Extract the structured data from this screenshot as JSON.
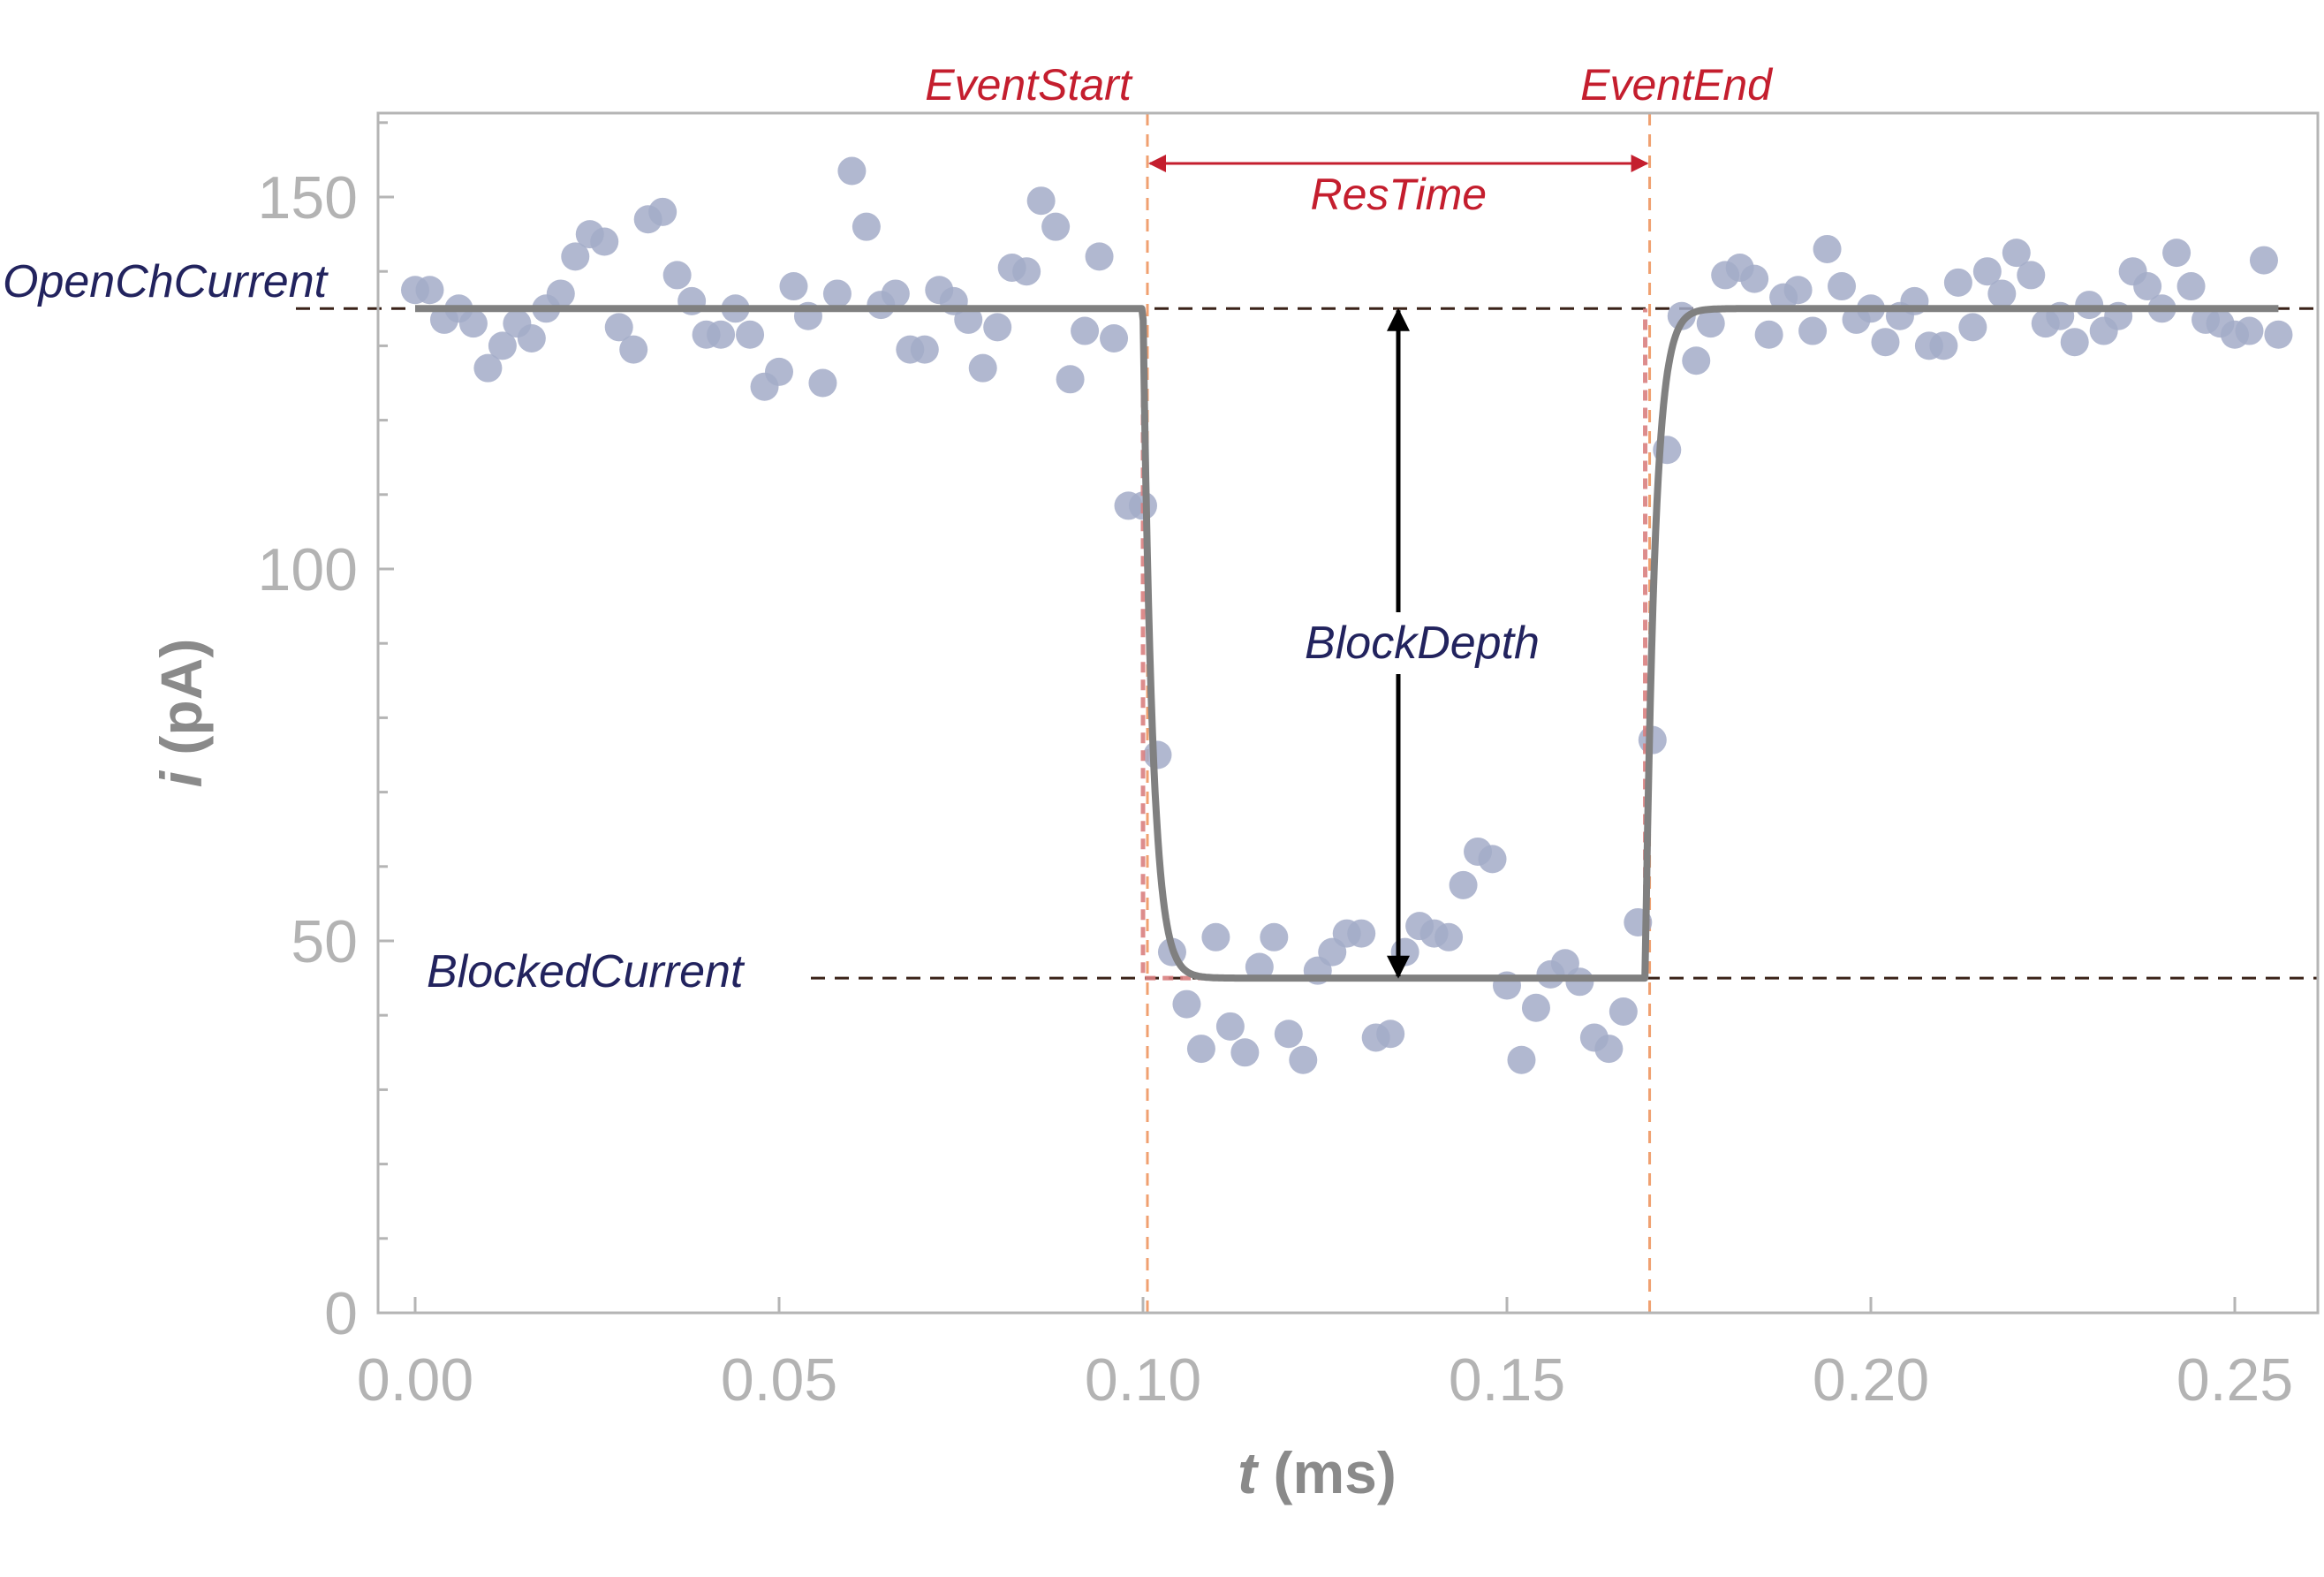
{
  "chart_data": {
    "type": "scatter",
    "xlabel_var": "t",
    "xlabel_unit": " (ms)",
    "ylabel_var": "i",
    "ylabel_unit": " (pA)",
    "xlim": [
      -0.005,
      0.26
    ],
    "ylim": [
      0,
      162
    ],
    "xticks": [
      0.0,
      0.05,
      0.1,
      0.15,
      0.2,
      0.25
    ],
    "xtick_labels": [
      "0.00",
      "0.05",
      "0.10",
      "0.15",
      "0.20",
      "0.25"
    ],
    "yticks": [
      0,
      50,
      100,
      150
    ],
    "ytick_labels": [
      "0",
      "50",
      "100",
      "150"
    ],
    "y_minor_ticks": [
      10,
      20,
      30,
      40,
      60,
      70,
      80,
      90,
      110,
      120,
      130,
      140,
      160
    ],
    "grid": false,
    "colors": {
      "points": "#a3acc8",
      "fit": "#808080",
      "red_annotation": "#c41e2e",
      "navy_annotation": "#22235e",
      "event_lines": "#f0a070",
      "level_lines": "#3a2218"
    },
    "levels": {
      "open_current": 135,
      "blocked_current": 45
    },
    "events": {
      "start": 0.1,
      "end": 0.169
    },
    "fit_time_constant_ms": 0.0013,
    "annotations": {
      "event_start": "EventStart",
      "event_end": "EventEnd",
      "res_time": "ResTime",
      "open_ch_current": "OpenChCurrent",
      "blocked_current": "BlockedCurrent",
      "block_depth": "BlockDepth"
    },
    "series": [
      {
        "kind": "measured current",
        "points": [
          [
            0.0,
            137.5
          ],
          [
            0.002,
            137.5
          ],
          [
            0.004,
            133.5
          ],
          [
            0.006,
            135
          ],
          [
            0.008,
            133
          ],
          [
            0.01,
            127
          ],
          [
            0.012,
            130
          ],
          [
            0.014,
            133
          ],
          [
            0.016,
            131
          ],
          [
            0.018,
            135
          ],
          [
            0.02,
            137
          ],
          [
            0.022,
            142
          ],
          [
            0.024,
            145
          ],
          [
            0.026,
            144
          ],
          [
            0.028,
            132.5
          ],
          [
            0.03,
            129.5
          ],
          [
            0.032,
            147
          ],
          [
            0.034,
            148
          ],
          [
            0.036,
            139.5
          ],
          [
            0.038,
            136
          ],
          [
            0.04,
            131.5
          ],
          [
            0.042,
            131.5
          ],
          [
            0.044,
            135
          ],
          [
            0.046,
            131.5
          ],
          [
            0.048,
            124.5
          ],
          [
            0.05,
            126.5
          ],
          [
            0.052,
            138
          ],
          [
            0.054,
            134
          ],
          [
            0.056,
            125
          ],
          [
            0.058,
            137
          ],
          [
            0.06,
            153.5
          ],
          [
            0.062,
            146
          ],
          [
            0.064,
            135.5
          ],
          [
            0.066,
            137
          ],
          [
            0.068,
            129.5
          ],
          [
            0.07,
            129.5
          ],
          [
            0.072,
            137.5
          ],
          [
            0.074,
            136
          ],
          [
            0.076,
            133.5
          ],
          [
            0.078,
            127
          ],
          [
            0.08,
            132.5
          ],
          [
            0.082,
            140.5
          ],
          [
            0.084,
            140
          ],
          [
            0.086,
            149.5
          ],
          [
            0.088,
            146
          ],
          [
            0.09,
            125.5
          ],
          [
            0.092,
            132
          ],
          [
            0.094,
            142
          ],
          [
            0.096,
            131
          ],
          [
            0.098,
            108.5
          ],
          [
            0.1,
            108.5
          ],
          [
            0.102,
            75
          ],
          [
            0.104,
            48.5
          ],
          [
            0.106,
            41.5
          ],
          [
            0.108,
            35.5
          ],
          [
            0.11,
            50.5
          ],
          [
            0.112,
            38.5
          ],
          [
            0.114,
            35
          ],
          [
            0.116,
            46.5
          ],
          [
            0.118,
            50.5
          ],
          [
            0.12,
            37.5
          ],
          [
            0.122,
            34
          ],
          [
            0.124,
            46
          ],
          [
            0.126,
            48.5
          ],
          [
            0.128,
            51
          ],
          [
            0.13,
            51
          ],
          [
            0.132,
            37
          ],
          [
            0.134,
            37.5
          ],
          [
            0.136,
            48.5
          ],
          [
            0.138,
            52
          ],
          [
            0.14,
            51
          ],
          [
            0.142,
            50.5
          ],
          [
            0.144,
            57.5
          ],
          [
            0.146,
            62
          ],
          [
            0.148,
            61
          ],
          [
            0.15,
            44
          ],
          [
            0.152,
            34
          ],
          [
            0.154,
            41
          ],
          [
            0.156,
            45.5
          ],
          [
            0.158,
            47
          ],
          [
            0.16,
            44.5
          ],
          [
            0.162,
            37
          ],
          [
            0.164,
            35.5
          ],
          [
            0.166,
            40.5
          ],
          [
            0.168,
            52.5
          ],
          [
            0.17,
            77
          ],
          [
            0.172,
            116
          ],
          [
            0.174,
            134
          ],
          [
            0.176,
            128
          ],
          [
            0.178,
            133
          ],
          [
            0.18,
            139.5
          ],
          [
            0.182,
            140.5
          ],
          [
            0.184,
            139
          ],
          [
            0.186,
            131.5
          ],
          [
            0.188,
            136.5
          ],
          [
            0.19,
            137.5
          ],
          [
            0.192,
            132
          ],
          [
            0.194,
            143
          ],
          [
            0.196,
            138
          ],
          [
            0.198,
            133.5
          ],
          [
            0.2,
            135
          ],
          [
            0.202,
            130.5
          ],
          [
            0.204,
            134
          ],
          [
            0.206,
            136
          ],
          [
            0.208,
            130
          ],
          [
            0.21,
            130
          ],
          [
            0.212,
            138.5
          ],
          [
            0.214,
            132.5
          ],
          [
            0.216,
            140
          ],
          [
            0.218,
            137
          ],
          [
            0.22,
            142.5
          ],
          [
            0.222,
            139.5
          ],
          [
            0.224,
            133
          ],
          [
            0.226,
            134
          ],
          [
            0.228,
            130.5
          ],
          [
            0.23,
            135.5
          ],
          [
            0.232,
            132
          ],
          [
            0.234,
            134
          ],
          [
            0.236,
            140
          ],
          [
            0.238,
            138
          ],
          [
            0.24,
            135
          ],
          [
            0.242,
            142.5
          ],
          [
            0.244,
            138
          ],
          [
            0.246,
            133.5
          ],
          [
            0.248,
            133
          ],
          [
            0.25,
            131.5
          ],
          [
            0.252,
            132
          ],
          [
            0.254,
            141.5
          ],
          [
            0.256,
            131.5
          ]
        ]
      },
      {
        "kind": "fit",
        "type": "line",
        "x_range": [
          0.0,
          0.256
        ]
      }
    ]
  }
}
